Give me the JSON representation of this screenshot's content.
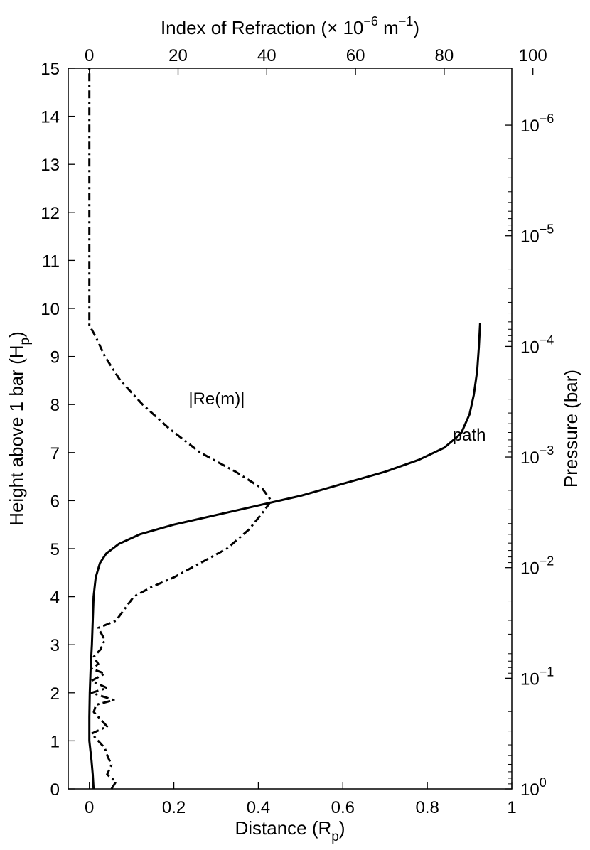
{
  "chart_data": {
    "type": "line",
    "title": "",
    "xlabel": "Distance (R",
    "xlabel_sub": "p",
    "xlabel_end": ")",
    "ylabel": "Height above 1 bar (H",
    "ylabel_sub": "p",
    "ylabel_end": ")",
    "x_top_label": "Index of Refraction (× 10",
    "x_top_label_exp": "−6",
    "x_top_label_unit": " m",
    "x_top_label_unit_exp": "−1",
    "x_top_label_end": ")",
    "y_right_label": "Pressure (bar)",
    "xlim": [
      -0.05,
      1.0
    ],
    "ylim": [
      0,
      15
    ],
    "x_top_lim": [
      -4.76,
      95.24
    ],
    "x_ticks": [
      0,
      0.2,
      0.4,
      0.6,
      0.8,
      1
    ],
    "x_tick_labels": [
      "0",
      "0.2",
      "0.4",
      "0.6",
      "0.8",
      "1"
    ],
    "y_ticks": [
      0,
      1,
      2,
      3,
      4,
      5,
      6,
      7,
      8,
      9,
      10,
      11,
      12,
      13,
      14,
      15
    ],
    "y_tick_labels": [
      "0",
      "1",
      "2",
      "3",
      "4",
      "5",
      "6",
      "7",
      "8",
      "9",
      "10",
      "11",
      "12",
      "13",
      "14",
      "15"
    ],
    "x_top_ticks": [
      0,
      20,
      40,
      60,
      80,
      100
    ],
    "x_top_tick_labels": [
      "0",
      "20",
      "40",
      "60",
      "80",
      "100"
    ],
    "right_major_ticks": [
      {
        "height": 0.0,
        "base": "10",
        "exp": "0"
      },
      {
        "height": 2.3026,
        "base": "10",
        "exp": "−1"
      },
      {
        "height": 4.6052,
        "base": "10",
        "exp": "−2"
      },
      {
        "height": 6.9078,
        "base": "10",
        "exp": "−3"
      },
      {
        "height": 9.2103,
        "base": "10",
        "exp": "−4"
      },
      {
        "height": 11.5129,
        "base": "10",
        "exp": "−5"
      },
      {
        "height": 13.8155,
        "base": "10",
        "exp": "−6"
      }
    ],
    "series": [
      {
        "name": "path",
        "axis": "bottom",
        "style": "solid",
        "points": [
          [
            0.01,
            0.0
          ],
          [
            0.008,
            0.3
          ],
          [
            0.005,
            0.6
          ],
          [
            0.0,
            1.0
          ],
          [
            0.0,
            1.5
          ],
          [
            0.001,
            2.0
          ],
          [
            0.003,
            2.5
          ],
          [
            0.006,
            3.0
          ],
          [
            0.008,
            3.5
          ],
          [
            0.01,
            4.0
          ],
          [
            0.015,
            4.4
          ],
          [
            0.025,
            4.7
          ],
          [
            0.04,
            4.9
          ],
          [
            0.07,
            5.1
          ],
          [
            0.12,
            5.3
          ],
          [
            0.2,
            5.5
          ],
          [
            0.3,
            5.7
          ],
          [
            0.4,
            5.9
          ],
          [
            0.5,
            6.1
          ],
          [
            0.6,
            6.35
          ],
          [
            0.7,
            6.6
          ],
          [
            0.78,
            6.85
          ],
          [
            0.84,
            7.1
          ],
          [
            0.88,
            7.4
          ],
          [
            0.9,
            7.8
          ],
          [
            0.91,
            8.2
          ],
          [
            0.918,
            8.7
          ],
          [
            0.922,
            9.2
          ],
          [
            0.925,
            9.7
          ]
        ]
      },
      {
        "name": "|Re(m)|",
        "axis": "top",
        "style": "dashdot",
        "points": [
          [
            5.0,
            0.0
          ],
          [
            6.0,
            0.15
          ],
          [
            4.0,
            0.3
          ],
          [
            5.0,
            0.5
          ],
          [
            4.0,
            0.7
          ],
          [
            3.5,
            0.85
          ],
          [
            2.0,
            1.0
          ],
          [
            0.5,
            1.15
          ],
          [
            4.0,
            1.3
          ],
          [
            2.5,
            1.45
          ],
          [
            1.0,
            1.6
          ],
          [
            1.5,
            1.75
          ],
          [
            5.5,
            1.85
          ],
          [
            0.5,
            2.0
          ],
          [
            4.0,
            2.1
          ],
          [
            0.5,
            2.25
          ],
          [
            3.5,
            2.4
          ],
          [
            0.5,
            2.5
          ],
          [
            2.0,
            2.6
          ],
          [
            1.0,
            2.75
          ],
          [
            2.5,
            2.9
          ],
          [
            3.5,
            3.1
          ],
          [
            2.0,
            3.35
          ],
          [
            6.0,
            3.5
          ],
          [
            8.0,
            3.75
          ],
          [
            10.0,
            4.0
          ],
          [
            14.0,
            4.2
          ],
          [
            19.0,
            4.4
          ],
          [
            25.0,
            4.7
          ],
          [
            31.0,
            5.0
          ],
          [
            36.0,
            5.4
          ],
          [
            39.5,
            5.8
          ],
          [
            41.0,
            6.0
          ],
          [
            39.0,
            6.25
          ],
          [
            33.0,
            6.6
          ],
          [
            25.0,
            7.0
          ],
          [
            18.0,
            7.5
          ],
          [
            12.0,
            8.0
          ],
          [
            7.0,
            8.5
          ],
          [
            3.5,
            9.0
          ],
          [
            1.5,
            9.4
          ],
          [
            0.0,
            9.65
          ],
          [
            0.0,
            10.0
          ],
          [
            0.0,
            12.0
          ],
          [
            0.0,
            15.0
          ]
        ]
      }
    ],
    "annotations": [
      {
        "text": "|Re(m)|",
        "x": 0.235,
        "y": 8.0,
        "axis": "bottom"
      },
      {
        "text": "path",
        "x": 0.86,
        "y": 7.25,
        "axis": "bottom"
      }
    ],
    "grid": false,
    "legend": "none"
  }
}
